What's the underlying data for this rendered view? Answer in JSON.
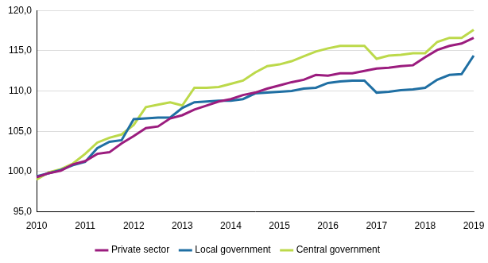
{
  "chart_data": {
    "type": "line",
    "categories": [
      "2010",
      null,
      null,
      null,
      "2011",
      null,
      null,
      null,
      "2012",
      null,
      null,
      null,
      "2013",
      null,
      null,
      null,
      "2014",
      null,
      null,
      null,
      "2015",
      null,
      null,
      null,
      "2016",
      null,
      null,
      null,
      "2017",
      null,
      null,
      null,
      "2018",
      null,
      null,
      null,
      "2019"
    ],
    "series": [
      {
        "name": "Private sector",
        "color": "#9b1c7e",
        "values": [
          99.3,
          99.8,
          100.1,
          100.9,
          101.3,
          102.2,
          102.4,
          103.5,
          104.4,
          105.4,
          105.6,
          106.6,
          107.0,
          107.7,
          108.2,
          108.7,
          109.0,
          109.5,
          109.8,
          110.3,
          110.7,
          111.1,
          111.4,
          112.0,
          111.9,
          112.2,
          112.2,
          112.5,
          112.8,
          112.9,
          113.1,
          113.2,
          114.2,
          115.1,
          115.6,
          115.9,
          116.6
        ]
      },
      {
        "name": "Local government",
        "color": "#1f6fa3",
        "values": [
          99.4,
          99.8,
          100.2,
          100.8,
          101.2,
          102.9,
          103.7,
          103.9,
          106.5,
          106.6,
          106.7,
          106.7,
          107.9,
          108.6,
          108.7,
          108.8,
          108.8,
          109.0,
          109.7,
          109.8,
          109.9,
          110.0,
          110.3,
          110.4,
          111.0,
          111.2,
          111.3,
          111.3,
          109.8,
          109.9,
          110.1,
          110.2,
          110.4,
          111.4,
          112.0,
          112.1,
          114.4
        ]
      },
      {
        "name": "Central government",
        "color": "#bcd94a",
        "values": [
          99.0,
          99.9,
          100.3,
          101.0,
          102.2,
          103.6,
          104.2,
          104.6,
          105.8,
          108.0,
          108.3,
          108.6,
          108.2,
          110.4,
          110.4,
          110.5,
          110.9,
          111.3,
          112.3,
          113.1,
          113.3,
          113.7,
          114.3,
          114.9,
          115.3,
          115.6,
          115.6,
          115.6,
          114.0,
          114.4,
          114.5,
          114.7,
          114.7,
          116.1,
          116.6,
          116.6,
          117.6
        ]
      }
    ],
    "ylim": [
      95,
      120
    ],
    "yticks": [
      {
        "value": 95,
        "label": "95,0"
      },
      {
        "value": 100,
        "label": "100,0"
      },
      {
        "value": 105,
        "label": "105,0"
      },
      {
        "value": 110,
        "label": "110,0"
      },
      {
        "value": 115,
        "label": "115,0"
      },
      {
        "value": 120,
        "label": "120,0"
      }
    ],
    "grid": true,
    "legend": "bottom"
  }
}
